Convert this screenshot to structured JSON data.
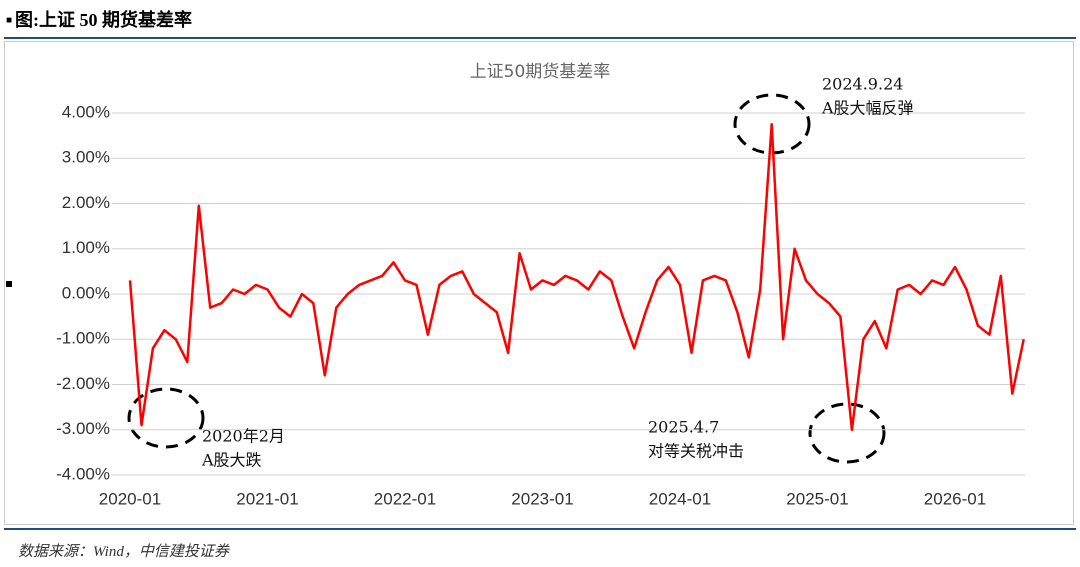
{
  "header": "图:上证 50 期货基差率",
  "chart_data": {
    "type": "line",
    "title": "上证50期货基差率",
    "x": [
      "2020-01",
      "2020-02",
      "2020-03",
      "2020-04",
      "2020-05",
      "2020-06",
      "2020-07",
      "2020-08",
      "2020-09",
      "2020-10",
      "2020-11",
      "2020-12",
      "2021-01",
      "2021-02",
      "2021-03",
      "2021-04",
      "2021-05",
      "2021-06",
      "2021-07",
      "2021-08",
      "2021-09",
      "2021-10",
      "2021-11",
      "2021-12",
      "2022-01",
      "2022-02",
      "2022-03",
      "2022-04",
      "2022-05",
      "2022-06",
      "2022-07",
      "2022-08",
      "2022-09",
      "2022-10",
      "2022-11",
      "2022-12",
      "2023-01",
      "2023-02",
      "2023-03",
      "2023-04",
      "2023-05",
      "2023-06",
      "2023-07",
      "2023-08",
      "2023-09",
      "2023-10",
      "2023-11",
      "2023-12",
      "2024-01",
      "2024-02",
      "2024-03",
      "2024-04",
      "2024-05",
      "2024-06",
      "2024-07",
      "2024-08",
      "2024-09",
      "2024-10",
      "2024-11",
      "2024-12",
      "2025-01",
      "2025-02",
      "2025-03",
      "2025-04",
      "2025-05",
      "2025-06",
      "2025-07",
      "2025-08",
      "2025-09",
      "2025-10",
      "2025-11",
      "2025-12",
      "2026-01",
      "2026-02",
      "2026-03",
      "2026-04",
      "2026-05",
      "2026-06",
      "2026-07"
    ],
    "series": [
      {
        "color": "#ff0000",
        "values": [
          0.3,
          -2.9,
          -1.2,
          -0.8,
          -1.0,
          -1.5,
          1.95,
          -0.3,
          -0.2,
          0.1,
          0.0,
          0.2,
          0.1,
          -0.3,
          -0.5,
          0.0,
          -0.2,
          -1.8,
          -0.3,
          0.0,
          0.2,
          0.3,
          0.4,
          0.7,
          0.3,
          0.2,
          -0.9,
          0.2,
          0.4,
          0.5,
          0.0,
          -0.2,
          -0.4,
          -1.3,
          0.9,
          0.1,
          0.3,
          0.2,
          0.4,
          0.3,
          0.1,
          0.5,
          0.3,
          -0.5,
          -1.2,
          -0.4,
          0.3,
          0.6,
          0.2,
          -1.3,
          0.3,
          0.4,
          0.3,
          -0.4,
          -1.4,
          0.1,
          3.75,
          -1.0,
          1.0,
          0.3,
          0.0,
          -0.2,
          -0.5,
          -3.0,
          -1.0,
          -0.6,
          -1.2,
          0.1,
          0.2,
          0.0,
          0.3,
          0.2,
          0.6,
          0.1,
          -0.7,
          -0.9,
          0.4,
          -2.2,
          -1.0
        ]
      }
    ],
    "ylim": [
      -4,
      4
    ],
    "yticks": [
      {
        "value": -4,
        "label": "-4.00%"
      },
      {
        "value": -3,
        "label": "-3.00%"
      },
      {
        "value": -2,
        "label": "-2.00%"
      },
      {
        "value": -1,
        "label": "-1.00%"
      },
      {
        "value": 0,
        "label": "0.00%"
      },
      {
        "value": 1,
        "label": "1.00%"
      },
      {
        "value": 2,
        "label": "2.00%"
      },
      {
        "value": 3,
        "label": "3.00%"
      },
      {
        "value": 4,
        "label": "4.00%"
      }
    ],
    "xticks": [
      "2020-01",
      "2021-01",
      "2022-01",
      "2023-01",
      "2024-01",
      "2025-01",
      "2026-01"
    ],
    "grid": true,
    "annotations": [
      {
        "lines": [
          "2024.9.24",
          "A股大幅反弹"
        ]
      },
      {
        "lines": [
          "2020年2月",
          "A股大跌"
        ]
      },
      {
        "lines": [
          "2025.4.7",
          "对等关税冲击"
        ]
      }
    ]
  },
  "footer": "数据来源：Wind，中信建投证券"
}
